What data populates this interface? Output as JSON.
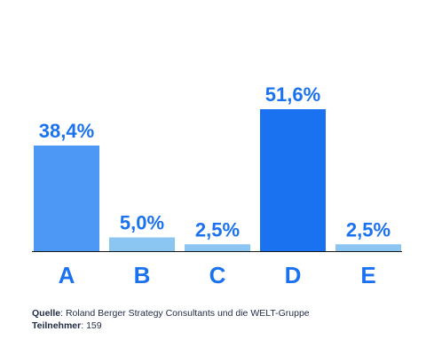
{
  "chart_data": {
    "type": "bar",
    "categories": [
      "A",
      "B",
      "C",
      "D",
      "E"
    ],
    "values": [
      38.4,
      5.0,
      2.5,
      51.6,
      2.5
    ],
    "value_labels": [
      "38,4%",
      "5,0%",
      "2,5%",
      "51,6%",
      "2,5%"
    ],
    "colors": [
      "#4d97f5",
      "#8ac6f1",
      "#8ac6f1",
      "#1b72f0",
      "#8ac6f1"
    ],
    "label_color": "#1b72f0",
    "axis_color": "#1a1a1a",
    "ylim": [
      0,
      55
    ],
    "grid": false,
    "legend": "none",
    "title": "",
    "xlabel": "",
    "ylabel": ""
  },
  "footer": {
    "source_key": "Quelle",
    "source_text": ": Roland Berger Strategy Consultants und die WELT-Gruppe",
    "participants_key": "Teilnehmer",
    "participants_text": ": 159"
  }
}
